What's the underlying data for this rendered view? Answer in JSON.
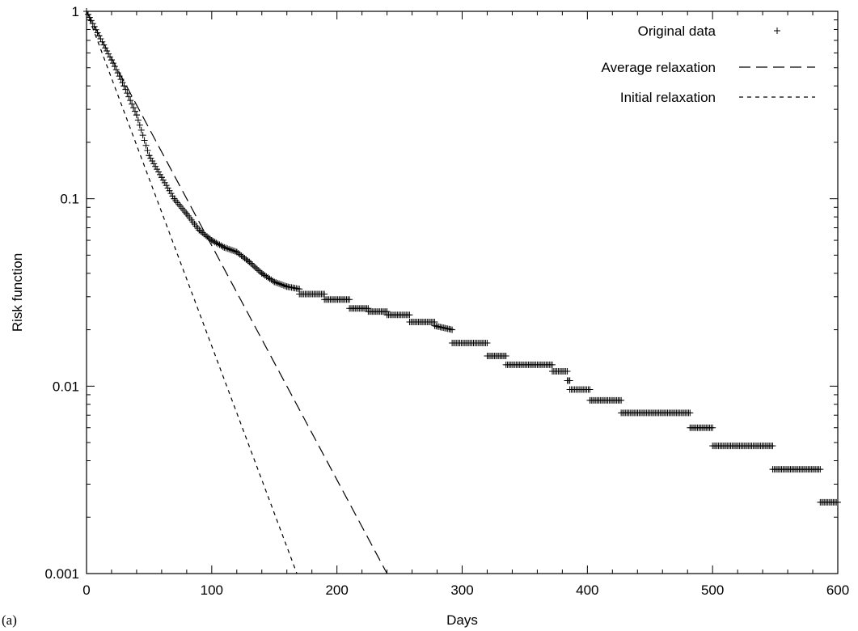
{
  "panel_label": "(a)",
  "chart_data": {
    "type": "scatter",
    "xlabel": "Days",
    "ylabel": "Risk function",
    "xlim": [
      0,
      600
    ],
    "ylim": [
      0.001,
      1
    ],
    "yscale": "log",
    "x_ticks": [
      0,
      100,
      200,
      300,
      400,
      500,
      600
    ],
    "x_tick_labels": [
      "0",
      "100",
      "200",
      "300",
      "400",
      "500",
      "600"
    ],
    "y_ticks": [
      0.001,
      0.01,
      0.1,
      1
    ],
    "y_tick_labels": [
      "0.001",
      "0.01",
      "0.1",
      "1"
    ],
    "grid": false,
    "legend_position": "top-right",
    "colors": {
      "axes": "#000000",
      "series": "#000000"
    },
    "series": [
      {
        "name": "Original data",
        "style": "points-plus",
        "segments": [
          {
            "x_start": 0,
            "x_end": 10,
            "y_start": 1.0,
            "y_end": 0.74
          },
          {
            "x_start": 10,
            "x_end": 20,
            "y_start": 0.74,
            "y_end": 0.55
          },
          {
            "x_start": 20,
            "x_end": 30,
            "y_start": 0.55,
            "y_end": 0.4
          },
          {
            "x_start": 30,
            "x_end": 40,
            "y_start": 0.4,
            "y_end": 0.28
          },
          {
            "x_start": 40,
            "x_end": 50,
            "y_start": 0.28,
            "y_end": 0.17
          },
          {
            "x_start": 50,
            "x_end": 60,
            "y_start": 0.17,
            "y_end": 0.13
          },
          {
            "x_start": 60,
            "x_end": 70,
            "y_start": 0.13,
            "y_end": 0.1
          },
          {
            "x_start": 70,
            "x_end": 80,
            "y_start": 0.1,
            "y_end": 0.083
          },
          {
            "x_start": 80,
            "x_end": 90,
            "y_start": 0.083,
            "y_end": 0.068
          },
          {
            "x_start": 90,
            "x_end": 100,
            "y_start": 0.068,
            "y_end": 0.06
          },
          {
            "x_start": 100,
            "x_end": 110,
            "y_start": 0.06,
            "y_end": 0.055
          },
          {
            "x_start": 110,
            "x_end": 120,
            "y_start": 0.055,
            "y_end": 0.052
          },
          {
            "x_start": 120,
            "x_end": 130,
            "y_start": 0.052,
            "y_end": 0.046
          },
          {
            "x_start": 130,
            "x_end": 140,
            "y_start": 0.046,
            "y_end": 0.04
          },
          {
            "x_start": 140,
            "x_end": 150,
            "y_start": 0.04,
            "y_end": 0.036
          },
          {
            "x_start": 150,
            "x_end": 160,
            "y_start": 0.036,
            "y_end": 0.034
          },
          {
            "x_start": 160,
            "x_end": 170,
            "y_start": 0.034,
            "y_end": 0.033
          },
          {
            "x_start": 170,
            "x_end": 190,
            "y_start": 0.031,
            "y_end": 0.031
          },
          {
            "x_start": 190,
            "x_end": 210,
            "y_start": 0.029,
            "y_end": 0.029
          },
          {
            "x_start": 210,
            "x_end": 225,
            "y_start": 0.026,
            "y_end": 0.026
          },
          {
            "x_start": 225,
            "x_end": 240,
            "y_start": 0.025,
            "y_end": 0.025
          },
          {
            "x_start": 240,
            "x_end": 258,
            "y_start": 0.024,
            "y_end": 0.024
          },
          {
            "x_start": 258,
            "x_end": 278,
            "y_start": 0.022,
            "y_end": 0.022
          },
          {
            "x_start": 278,
            "x_end": 292,
            "y_start": 0.021,
            "y_end": 0.02
          },
          {
            "x_start": 292,
            "x_end": 320,
            "y_start": 0.017,
            "y_end": 0.017
          },
          {
            "x_start": 320,
            "x_end": 335,
            "y_start": 0.0145,
            "y_end": 0.0145
          },
          {
            "x_start": 335,
            "x_end": 372,
            "y_start": 0.013,
            "y_end": 0.013
          },
          {
            "x_start": 372,
            "x_end": 384,
            "y_start": 0.012,
            "y_end": 0.012
          },
          {
            "x_start": 384,
            "x_end": 386,
            "y_start": 0.0107,
            "y_end": 0.0107
          },
          {
            "x_start": 386,
            "x_end": 402,
            "y_start": 0.0096,
            "y_end": 0.0096
          },
          {
            "x_start": 402,
            "x_end": 427,
            "y_start": 0.0084,
            "y_end": 0.0084
          },
          {
            "x_start": 427,
            "x_end": 482,
            "y_start": 0.0072,
            "y_end": 0.0072
          },
          {
            "x_start": 482,
            "x_end": 500,
            "y_start": 0.006,
            "y_end": 0.006
          },
          {
            "x_start": 500,
            "x_end": 548,
            "y_start": 0.0048,
            "y_end": 0.0048
          },
          {
            "x_start": 548,
            "x_end": 586,
            "y_start": 0.0036,
            "y_end": 0.0036
          },
          {
            "x_start": 586,
            "x_end": 600,
            "y_start": 0.0024,
            "y_end": 0.0024
          }
        ]
      },
      {
        "name": "Average relaxation",
        "style": "long-dash",
        "x": [
          0,
          240
        ],
        "y": [
          1,
          0.001
        ]
      },
      {
        "name": "Initial relaxation",
        "style": "short-dash",
        "x": [
          0,
          168
        ],
        "y": [
          1,
          0.001
        ]
      }
    ]
  }
}
